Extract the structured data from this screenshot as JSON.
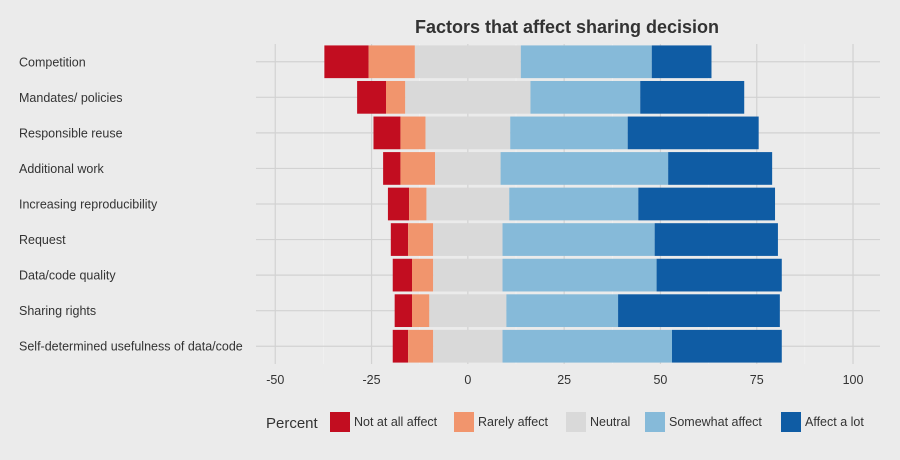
{
  "chart_data": {
    "type": "bar",
    "orientation": "horizontal",
    "stacking": "diverging",
    "title": "Factors that affect sharing decision",
    "xlabel": "",
    "ylabel": "",
    "xlim": [
      -55,
      107
    ],
    "xticks": [
      -50,
      -25,
      0,
      25,
      50,
      75,
      100
    ],
    "xtick_labels": [
      "-50",
      "-25",
      "0",
      "25",
      "50",
      "75",
      "100"
    ],
    "grid": true,
    "legend_position": "bottom",
    "legend_title": "Percent",
    "categories": [
      "Competition",
      "Mandates/ policies",
      "Responsible reuse",
      "Additional work",
      "Increasing reproducibility",
      "Request",
      "Data/code quality",
      "Sharing rights",
      "Self-determined usefulness of data/code"
    ],
    "series": [
      {
        "name": "Not at all affect",
        "color": "#c20d20",
        "values": [
          11.5,
          7.5,
          7,
          4.5,
          5.5,
          4.5,
          5,
          4.5,
          4
        ]
      },
      {
        "name": "Rarely affect",
        "color": "#f1956d",
        "values": [
          12,
          5,
          6.5,
          9,
          4.5,
          6.5,
          5.5,
          4.5,
          6.5
        ]
      },
      {
        "name": "Neutral",
        "color": "#d9d9d9",
        "values": [
          27.5,
          32.5,
          22,
          17,
          21.5,
          18,
          18,
          20,
          18
        ]
      },
      {
        "name": "Somewhat affect",
        "color": "#86bad9",
        "values": [
          34,
          28.5,
          30.5,
          43.5,
          33.5,
          39.5,
          40,
          29,
          44
        ]
      },
      {
        "name": "Affect a lot",
        "color": "#0f5ca4",
        "values": [
          15.5,
          27,
          34,
          27,
          35.5,
          32,
          32.5,
          42,
          28.5
        ]
      }
    ]
  }
}
